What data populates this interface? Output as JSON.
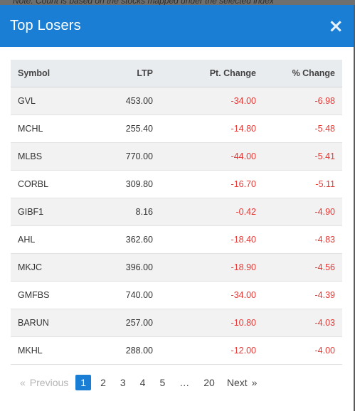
{
  "backdrop": {
    "note": "Note: Count is based on the stocks mapped under the selected index"
  },
  "modal": {
    "title": "Top Losers",
    "close_glyph": "×"
  },
  "table": {
    "headers": {
      "symbol": "Symbol",
      "ltp": "LTP",
      "pt_change": "Pt. Change",
      "pct_change": "% Change"
    },
    "rows": [
      {
        "symbol": "GVL",
        "ltp": "453.00",
        "pt_change": "-34.00",
        "pct_change": "-6.98"
      },
      {
        "symbol": "MCHL",
        "ltp": "255.40",
        "pt_change": "-14.80",
        "pct_change": "-5.48"
      },
      {
        "symbol": "MLBS",
        "ltp": "770.00",
        "pt_change": "-44.00",
        "pct_change": "-5.41"
      },
      {
        "symbol": "CORBL",
        "ltp": "309.80",
        "pt_change": "-16.70",
        "pct_change": "-5.11"
      },
      {
        "symbol": "GIBF1",
        "ltp": "8.16",
        "pt_change": "-0.42",
        "pct_change": "-4.90"
      },
      {
        "symbol": "AHL",
        "ltp": "362.60",
        "pt_change": "-18.40",
        "pct_change": "-4.83"
      },
      {
        "symbol": "MKJC",
        "ltp": "396.00",
        "pt_change": "-18.90",
        "pct_change": "-4.56"
      },
      {
        "symbol": "GMFBS",
        "ltp": "740.00",
        "pt_change": "-34.00",
        "pct_change": "-4.39"
      },
      {
        "symbol": "BARUN",
        "ltp": "257.00",
        "pt_change": "-10.80",
        "pct_change": "-4.03"
      },
      {
        "symbol": "MKHL",
        "ltp": "288.00",
        "pt_change": "-12.00",
        "pct_change": "-4.00"
      }
    ]
  },
  "pagination": {
    "prev_arrow": "«",
    "prev_label": "Previous",
    "pages": [
      "1",
      "2",
      "3",
      "4",
      "5"
    ],
    "ellipsis": "…",
    "last_page": "20",
    "next_label": "Next",
    "next_arrow": "»",
    "current_page": "1"
  },
  "colors": {
    "header_bg": "#1a7fd4",
    "negative": "#e53935",
    "active_page": "#1a7fd4"
  }
}
